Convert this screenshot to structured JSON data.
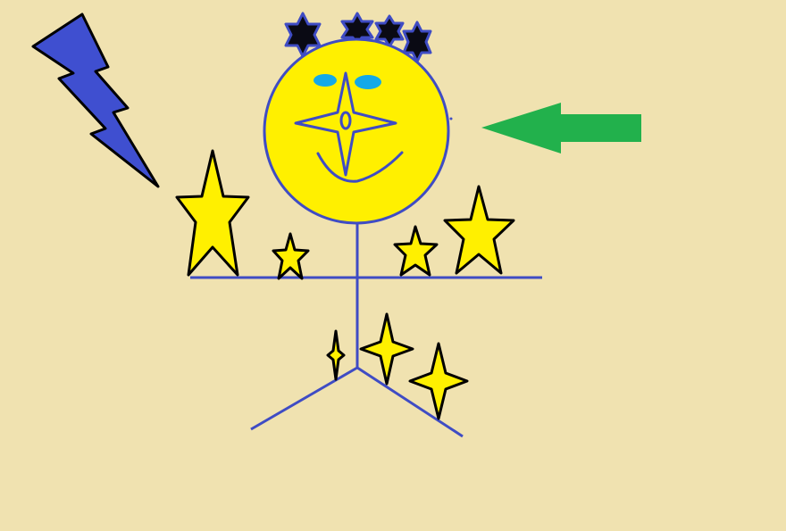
{
  "canvas": {
    "background": "#F0E2B0"
  },
  "palette": {
    "line_blue": "#3F4CC4",
    "lightning_blue": "#3F4FD0",
    "sun_yellow": "#FFF000",
    "star_yellow": "#FFF000",
    "outline_black": "#000000",
    "eye_cyan": "#13A9E8",
    "arrow_green": "#22B14C",
    "dark_star_fill": "#0A0A14"
  },
  "icons": {
    "lightning": "lightning-bolt-icon",
    "arrow": "left-arrow-icon",
    "sun": "sun-face-icon",
    "big_star": "five-point-star-icon",
    "sparkle": "four-point-sparkle-icon",
    "hexagram": "six-point-star-icon"
  }
}
